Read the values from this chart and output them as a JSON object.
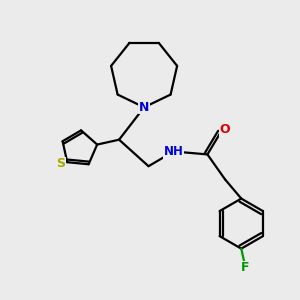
{
  "bg_color": "#ebebeb",
  "bond_color": "#000000",
  "N_color": "#0000dd",
  "O_color": "#dd0000",
  "S_color": "#aaaa00",
  "F_color": "#009900",
  "line_width": 1.6,
  "figsize": [
    3.0,
    3.0
  ],
  "dpi": 100,
  "xlim": [
    0,
    10
  ],
  "ylim": [
    0,
    10
  ]
}
